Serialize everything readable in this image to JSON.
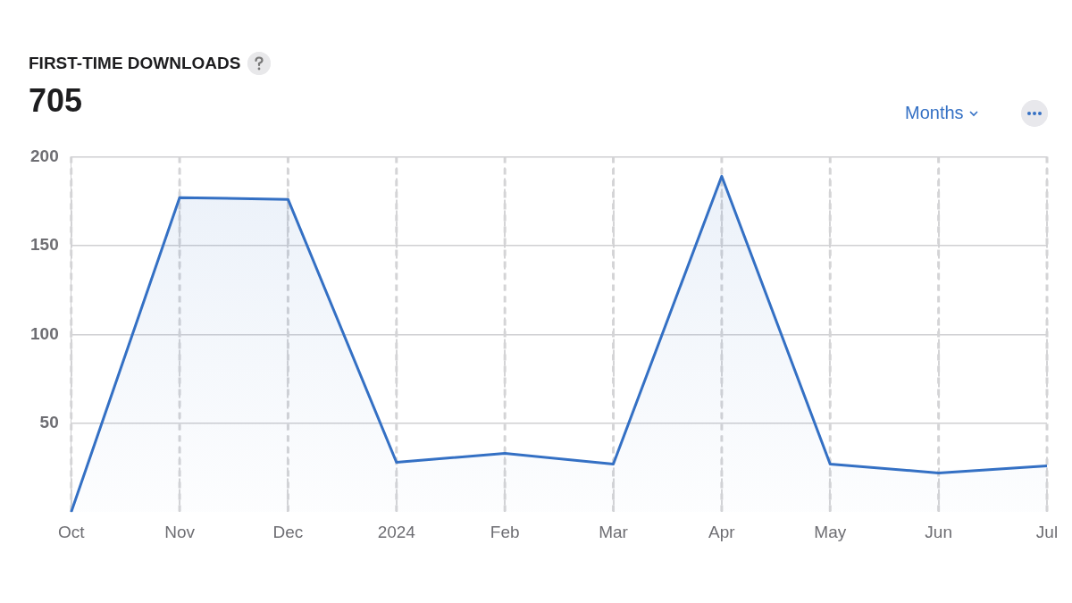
{
  "chart_data": {
    "type": "area",
    "title": "FIRST-TIME DOWNLOADS",
    "subtitle": "705",
    "annotations": [
      "Months"
    ],
    "categories": [
      "Oct",
      "Nov",
      "Dec",
      "2024",
      "Feb",
      "Mar",
      "Apr",
      "May",
      "Jun",
      "Jul"
    ],
    "series": [
      {
        "color": "#3470c4",
        "values": [
          0,
          177,
          176,
          28,
          33,
          27,
          189,
          27,
          22,
          26
        ]
      }
    ],
    "ylim": [
      0,
      200
    ],
    "yticks": [
      50,
      100,
      150,
      200
    ],
    "grid": true,
    "legend": false,
    "marker": "none",
    "line_style": "solid"
  }
}
